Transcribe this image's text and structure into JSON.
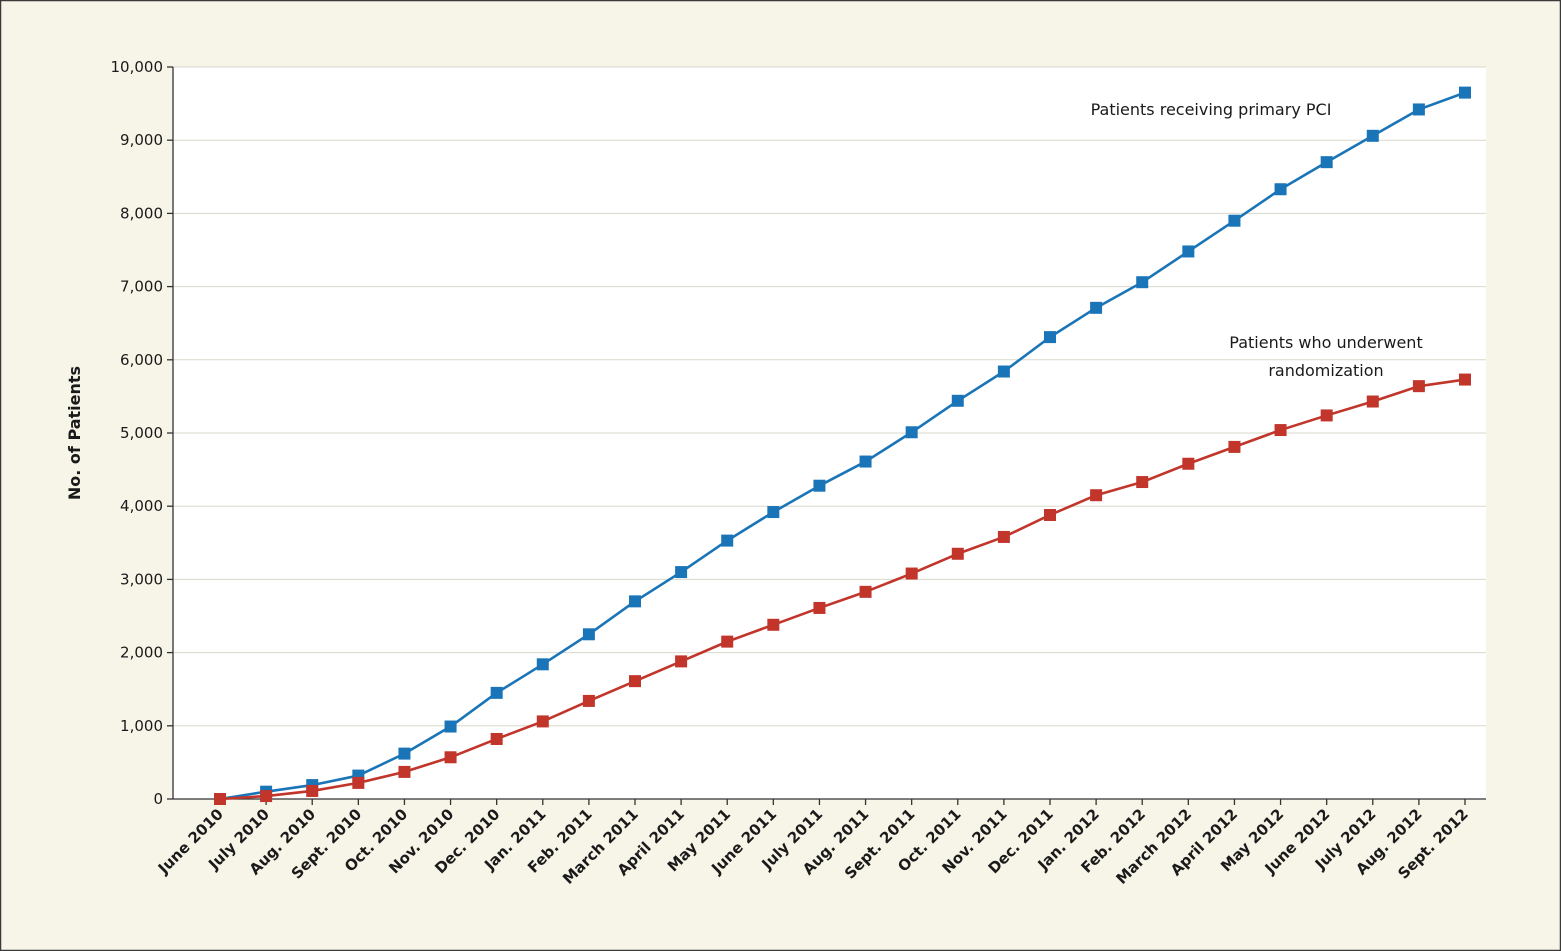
{
  "chart_data": {
    "type": "line",
    "title": "",
    "xlabel": "",
    "ylabel": "No. of Patients",
    "ylim": [
      0,
      10000
    ],
    "yticks": [
      0,
      1000,
      2000,
      3000,
      4000,
      5000,
      6000,
      7000,
      8000,
      9000,
      10000
    ],
    "ytick_labels": [
      "0",
      "1,000",
      "2,000",
      "3,000",
      "4,000",
      "5,000",
      "6,000",
      "7,000",
      "8,000",
      "9,000",
      "10,000"
    ],
    "grid": "horizontal",
    "categories": [
      "June 2010",
      "July 2010",
      "Aug. 2010",
      "Sept. 2010",
      "Oct. 2010",
      "Nov. 2010",
      "Dec. 2010",
      "Jan. 2011",
      "Feb. 2011",
      "March 2011",
      "April 2011",
      "May 2011",
      "June 2011",
      "July 2011",
      "Aug. 2011",
      "Sept. 2011",
      "Oct. 2011",
      "Nov. 2011",
      "Dec. 2011",
      "Jan. 2012",
      "Feb. 2012",
      "March 2012",
      "April 2012",
      "May 2012",
      "June 2012",
      "July 2012",
      "Aug. 2012",
      "Sept. 2012"
    ],
    "series": [
      {
        "name": "Patients receiving primary PCI",
        "color": "#1a75b8",
        "values": [
          0,
          100,
          190,
          320,
          620,
          990,
          1450,
          1840,
          2250,
          2700,
          3100,
          3530,
          3920,
          4280,
          4610,
          5010,
          5440,
          5840,
          6310,
          6710,
          7060,
          7480,
          7900,
          8330,
          8700,
          9060,
          9420,
          9650
        ]
      },
      {
        "name": "Patients who underwent randomization",
        "color": "#c1352b",
        "values": [
          0,
          40,
          110,
          220,
          370,
          570,
          820,
          1060,
          1340,
          1610,
          1880,
          2150,
          2380,
          2610,
          2830,
          3080,
          3350,
          3580,
          3880,
          4150,
          4330,
          4580,
          4810,
          5040,
          5240,
          5430,
          5640,
          5730
        ]
      }
    ],
    "annotations": [
      {
        "series": 0,
        "lines": [
          "Patients receiving primary PCI"
        ]
      },
      {
        "series": 1,
        "lines": [
          "Patients who underwent",
          "randomization"
        ]
      }
    ],
    "colors": {
      "background": "#f7f5e8",
      "frame": "#3a3a3a",
      "gridline": "#d9d8cc"
    }
  }
}
